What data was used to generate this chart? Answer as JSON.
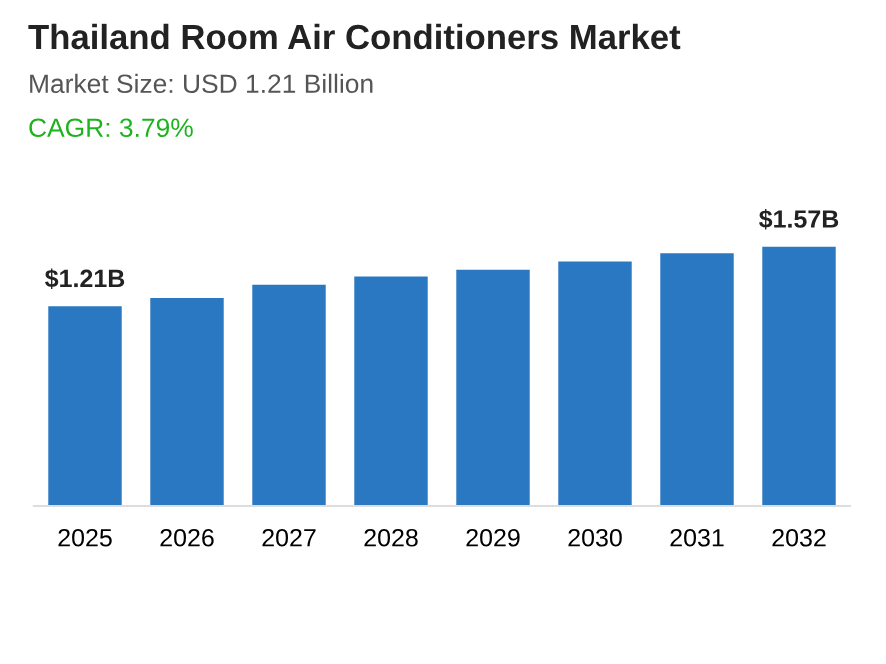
{
  "chart_data": {
    "type": "bar",
    "title": "Thailand Room Air Conditioners Market",
    "subtitle": "Market Size: USD 1.21 Billion",
    "annotations": [
      "CAGR: 3.79%"
    ],
    "categories": [
      "2025",
      "2026",
      "2027",
      "2028",
      "2029",
      "2030",
      "2031",
      "2032"
    ],
    "values": [
      1.21,
      1.26,
      1.34,
      1.39,
      1.43,
      1.48,
      1.53,
      1.57
    ],
    "value_labels": [
      "$1.21B",
      null,
      null,
      null,
      null,
      null,
      null,
      "$1.57B"
    ],
    "color": "#2b78c2",
    "grid": false,
    "legend": false,
    "tick_labels": "x"
  }
}
